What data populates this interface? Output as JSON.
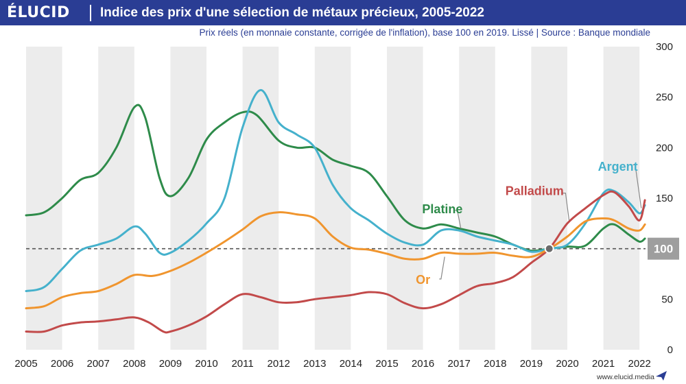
{
  "header": {
    "logo": "ÉLUCID",
    "title": "Indice des prix d'une sélection de métaux précieux, 2005-2022",
    "subtitle": "Prix réels (en monnaie constante, corrigée de l'inflation), base 100 en 2019. Lissé  |  Source : Banque mondiale"
  },
  "footer": {
    "url": "www.elucid.media"
  },
  "colors": {
    "header_bg": "#2a3d94",
    "platine": "#2e8b4a",
    "argent": "#45b1cc",
    "palladium": "#c24a4a",
    "or": "#f0952e",
    "baseline": "#555555",
    "highlight_box": "#9e9e9e"
  },
  "chart_data": {
    "type": "line",
    "x_start": 2005,
    "x_end": 2022.15,
    "ylim": [
      0,
      300
    ],
    "xticks": [
      "2005",
      "2006",
      "2007",
      "2008",
      "2009",
      "2010",
      "2011",
      "2012",
      "2013",
      "2014",
      "2015",
      "2016",
      "2017",
      "2018",
      "2019",
      "2020",
      "2021",
      "2022"
    ],
    "yticks": [
      "0",
      "50",
      "100",
      "150",
      "200",
      "250",
      "300"
    ],
    "reference_line": {
      "y": 100,
      "label": "100",
      "style": "dashed"
    },
    "base_point": {
      "x": 2019.5,
      "y": 100
    },
    "series": [
      {
        "name": "Platine",
        "color": "#2e8b4a",
        "points": [
          [
            2005,
            133
          ],
          [
            2005.5,
            136
          ],
          [
            2006,
            150
          ],
          [
            2006.5,
            168
          ],
          [
            2007,
            175
          ],
          [
            2007.5,
            200
          ],
          [
            2008,
            240
          ],
          [
            2008.3,
            230
          ],
          [
            2008.7,
            170
          ],
          [
            2009,
            152
          ],
          [
            2009.5,
            170
          ],
          [
            2010,
            208
          ],
          [
            2010.5,
            225
          ],
          [
            2011,
            235
          ],
          [
            2011.4,
            232
          ],
          [
            2012,
            207
          ],
          [
            2012.5,
            200
          ],
          [
            2013,
            200
          ],
          [
            2013.5,
            188
          ],
          [
            2014,
            182
          ],
          [
            2014.5,
            175
          ],
          [
            2015,
            152
          ],
          [
            2015.5,
            128
          ],
          [
            2016,
            120
          ],
          [
            2016.5,
            124
          ],
          [
            2017,
            120
          ],
          [
            2017.5,
            116
          ],
          [
            2018,
            112
          ],
          [
            2018.5,
            104
          ],
          [
            2019,
            98
          ],
          [
            2019.5,
            100
          ],
          [
            2020,
            102
          ],
          [
            2020.5,
            103
          ],
          [
            2021,
            120
          ],
          [
            2021.3,
            124
          ],
          [
            2021.7,
            114
          ],
          [
            2022,
            107
          ],
          [
            2022.15,
            110
          ]
        ]
      },
      {
        "name": "Argent",
        "color": "#45b1cc",
        "points": [
          [
            2005,
            58
          ],
          [
            2005.5,
            62
          ],
          [
            2006,
            80
          ],
          [
            2006.5,
            98
          ],
          [
            2007,
            104
          ],
          [
            2007.5,
            110
          ],
          [
            2008,
            122
          ],
          [
            2008.3,
            115
          ],
          [
            2008.7,
            96
          ],
          [
            2009,
            96
          ],
          [
            2009.5,
            108
          ],
          [
            2010,
            125
          ],
          [
            2010.5,
            150
          ],
          [
            2011,
            220
          ],
          [
            2011.5,
            257
          ],
          [
            2012,
            225
          ],
          [
            2012.5,
            213
          ],
          [
            2013,
            200
          ],
          [
            2013.5,
            163
          ],
          [
            2014,
            140
          ],
          [
            2014.5,
            128
          ],
          [
            2015,
            115
          ],
          [
            2015.5,
            106
          ],
          [
            2016,
            104
          ],
          [
            2016.5,
            118
          ],
          [
            2017,
            118
          ],
          [
            2017.5,
            112
          ],
          [
            2018,
            108
          ],
          [
            2018.5,
            104
          ],
          [
            2019,
            97
          ],
          [
            2019.5,
            100
          ],
          [
            2020,
            104
          ],
          [
            2020.5,
            125
          ],
          [
            2021,
            155
          ],
          [
            2021.3,
            157
          ],
          [
            2021.7,
            146
          ],
          [
            2022,
            135
          ],
          [
            2022.15,
            143
          ]
        ]
      },
      {
        "name": "Palladium",
        "color": "#c24a4a",
        "points": [
          [
            2005,
            18
          ],
          [
            2005.5,
            18
          ],
          [
            2006,
            24
          ],
          [
            2006.5,
            27
          ],
          [
            2007,
            28
          ],
          [
            2007.5,
            30
          ],
          [
            2008,
            32
          ],
          [
            2008.4,
            27
          ],
          [
            2008.8,
            18
          ],
          [
            2009,
            18
          ],
          [
            2009.5,
            24
          ],
          [
            2010,
            33
          ],
          [
            2010.5,
            45
          ],
          [
            2011,
            55
          ],
          [
            2011.5,
            52
          ],
          [
            2012,
            47
          ],
          [
            2012.5,
            47
          ],
          [
            2013,
            50
          ],
          [
            2013.5,
            52
          ],
          [
            2014,
            54
          ],
          [
            2014.5,
            57
          ],
          [
            2015,
            55
          ],
          [
            2015.5,
            46
          ],
          [
            2016,
            41
          ],
          [
            2016.5,
            45
          ],
          [
            2017,
            54
          ],
          [
            2017.5,
            63
          ],
          [
            2018,
            66
          ],
          [
            2018.5,
            72
          ],
          [
            2019,
            86
          ],
          [
            2019.5,
            100
          ],
          [
            2020,
            125
          ],
          [
            2020.5,
            140
          ],
          [
            2021,
            153
          ],
          [
            2021.3,
            156
          ],
          [
            2021.7,
            142
          ],
          [
            2022,
            128
          ],
          [
            2022.15,
            148
          ]
        ]
      },
      {
        "name": "Or",
        "color": "#f0952e",
        "points": [
          [
            2005,
            41
          ],
          [
            2005.5,
            43
          ],
          [
            2006,
            52
          ],
          [
            2006.5,
            56
          ],
          [
            2007,
            58
          ],
          [
            2007.5,
            65
          ],
          [
            2008,
            74
          ],
          [
            2008.5,
            73
          ],
          [
            2009,
            78
          ],
          [
            2009.5,
            86
          ],
          [
            2010,
            96
          ],
          [
            2010.5,
            107
          ],
          [
            2011,
            119
          ],
          [
            2011.5,
            132
          ],
          [
            2012,
            136
          ],
          [
            2012.5,
            134
          ],
          [
            2013,
            130
          ],
          [
            2013.5,
            112
          ],
          [
            2014,
            101
          ],
          [
            2014.5,
            99
          ],
          [
            2015,
            95
          ],
          [
            2015.5,
            90
          ],
          [
            2016,
            90
          ],
          [
            2016.5,
            96
          ],
          [
            2017,
            95
          ],
          [
            2017.5,
            95
          ],
          [
            2018,
            96
          ],
          [
            2018.5,
            93
          ],
          [
            2019,
            92
          ],
          [
            2019.5,
            100
          ],
          [
            2020,
            112
          ],
          [
            2020.5,
            127
          ],
          [
            2021,
            130
          ],
          [
            2021.3,
            128
          ],
          [
            2021.7,
            120
          ],
          [
            2022,
            118
          ],
          [
            2022.15,
            124
          ]
        ]
      }
    ],
    "labels": [
      {
        "series": "Argent",
        "text": "Argent",
        "color": "#45b1cc",
        "x": 2021.4,
        "y": 177,
        "anchor": "middle",
        "leader_from": [
          2021.82,
          183
        ],
        "leader_to": [
          2021.88,
          183
        ],
        "leader_end": [
          2022.05,
          140
        ]
      },
      {
        "series": "Palladium",
        "text": "Palladium",
        "color": "#c24a4a",
        "x": 2019.9,
        "y": 153,
        "anchor": "end",
        "leader_from": [
          2019.85,
          155
        ],
        "leader_to": [
          2019.95,
          155
        ],
        "leader_end": [
          2020.05,
          128
        ]
      },
      {
        "series": "Platine",
        "text": "Platine",
        "color": "#2e8b4a",
        "x": 2017.1,
        "y": 135,
        "anchor": "end",
        "leader_from": [
          2016.85,
          138
        ],
        "leader_to": [
          2016.95,
          138
        ],
        "leader_end": [
          2017.05,
          120
        ]
      },
      {
        "series": "Or",
        "text": "Or",
        "color": "#f0952e",
        "x": 2016.2,
        "y": 65,
        "anchor": "end",
        "leader_from": [
          2016.45,
          70
        ],
        "leader_to": [
          2016.5,
          70
        ],
        "leader_end": [
          2016.6,
          92
        ]
      }
    ]
  }
}
